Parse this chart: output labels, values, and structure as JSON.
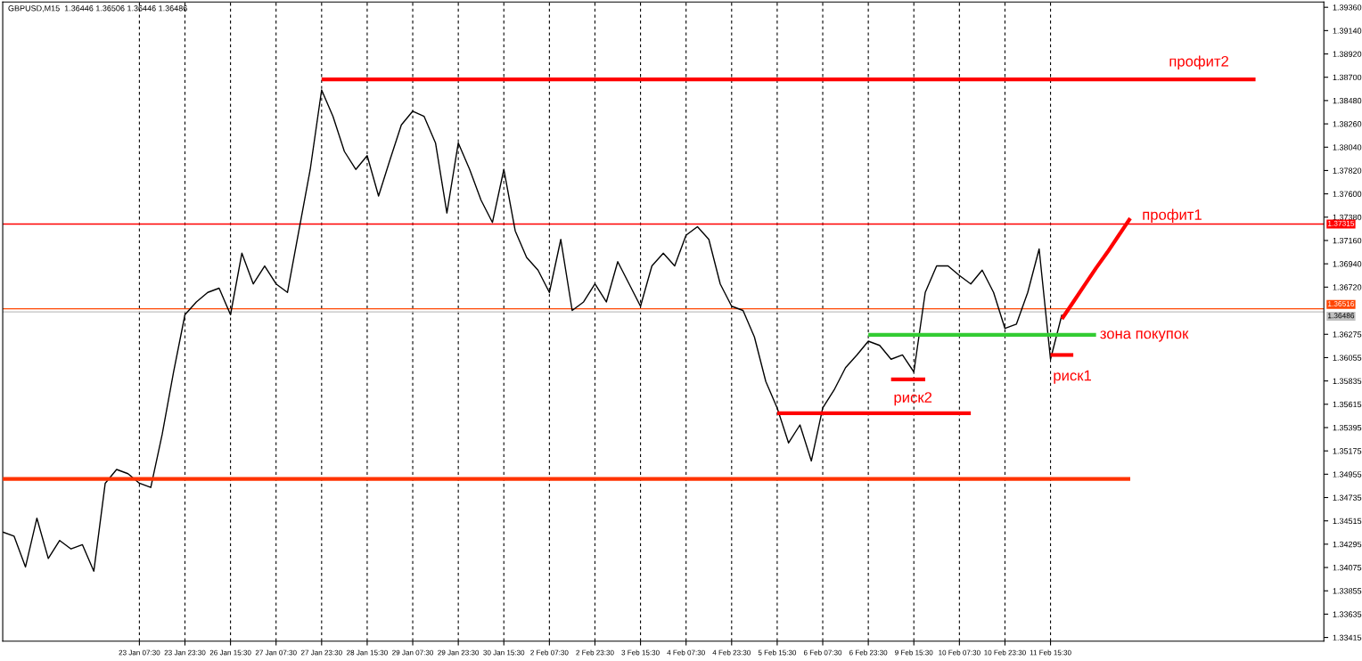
{
  "chart_data": {
    "type": "line",
    "title": "GBPUSD,M15  1.36446 1.36506 1.36446 1.36486",
    "categories": [
      null,
      null,
      null,
      null,
      null,
      null,
      null,
      null,
      null,
      null,
      null,
      null,
      "23 Jan 07:30",
      null,
      null,
      null,
      "23 Jan 23:30",
      null,
      null,
      null,
      "26 Jan 15:30",
      null,
      null,
      null,
      "27 Jan 07:30",
      null,
      null,
      null,
      "27 Jan 23:30",
      null,
      null,
      null,
      "28 Jan 15:30",
      null,
      null,
      null,
      "29 Jan 07:30",
      null,
      null,
      null,
      "29 Jan 23:30",
      null,
      null,
      null,
      "30 Jan 15:30",
      null,
      null,
      null,
      "2 Feb 07:30",
      null,
      null,
      null,
      "2 Feb 23:30",
      null,
      null,
      null,
      "3 Feb 15:30",
      null,
      null,
      null,
      "4 Feb 07:30",
      null,
      null,
      null,
      "4 Feb 23:30",
      null,
      null,
      null,
      "5 Feb 15:30",
      null,
      null,
      null,
      "6 Feb 07:30",
      null,
      null,
      null,
      "6 Feb 23:30",
      null,
      null,
      null,
      "9 Feb 15:30",
      null,
      null,
      null,
      "10 Feb 07:30",
      null,
      null,
      null,
      "10 Feb 23:30",
      null,
      null,
      null,
      "11 Feb 15:30",
      null,
      null,
      null,
      null,
      null,
      null,
      null,
      null,
      null,
      null,
      null,
      null,
      null,
      null,
      null,
      null,
      null,
      null,
      null,
      null,
      null,
      null,
      null,
      null
    ],
    "ylim": [
      1.3338,
      1.3941
    ],
    "yticks": [
      {
        "value": 1.3936,
        "label": "1.39360"
      },
      {
        "value": 1.3914,
        "label": "1.39140"
      },
      {
        "value": 1.3892,
        "label": "1.38920"
      },
      {
        "value": 1.387,
        "label": "1.38700"
      },
      {
        "value": 1.3848,
        "label": "1.38480"
      },
      {
        "value": 1.3826,
        "label": "1.38260"
      },
      {
        "value": 1.3804,
        "label": "1.38040"
      },
      {
        "value": 1.3782,
        "label": "1.37820"
      },
      {
        "value": 1.376,
        "label": "1.37600"
      },
      {
        "value": 1.3738,
        "label": "1.37380"
      },
      {
        "value": 1.3716,
        "label": "1.37160"
      },
      {
        "value": 1.3694,
        "label": "1.36940"
      },
      {
        "value": 1.3672,
        "label": "1.36720"
      },
      {
        "value": 1.36275,
        "label": "1.36275"
      },
      {
        "value": 1.36055,
        "label": "1.36055"
      },
      {
        "value": 1.35835,
        "label": "1.35835"
      },
      {
        "value": 1.35615,
        "label": "1.35615"
      },
      {
        "value": 1.35395,
        "label": "1.35395"
      },
      {
        "value": 1.35175,
        "label": "1.35175"
      },
      {
        "value": 1.34955,
        "label": "1.34955"
      },
      {
        "value": 1.34735,
        "label": "1.34735"
      },
      {
        "value": 1.34515,
        "label": "1.34515"
      },
      {
        "value": 1.34295,
        "label": "1.34295"
      },
      {
        "value": 1.34075,
        "label": "1.34075"
      },
      {
        "value": 1.33855,
        "label": "1.33855"
      },
      {
        "value": 1.33635,
        "label": "1.33635"
      },
      {
        "value": 1.33415,
        "label": "1.33415"
      }
    ],
    "grid": "x",
    "legend": false,
    "series": [
      {
        "color": "#000000",
        "values": [
          1.3441,
          1.3437,
          1.3408,
          1.3454,
          1.3416,
          1.3433,
          1.3425,
          1.3429,
          1.3404,
          1.3487,
          1.35,
          1.3496,
          1.3487,
          1.3483,
          1.3533,
          1.3592,
          1.3646,
          1.3658,
          1.3667,
          1.3671,
          1.3646,
          1.3704,
          1.3675,
          1.3692,
          1.3675,
          1.3667,
          1.3725,
          1.3783,
          1.3858,
          1.3833,
          1.38,
          1.3783,
          1.3796,
          1.3758,
          1.3792,
          1.3825,
          1.3838,
          1.3833,
          1.3808,
          1.3742,
          1.3808,
          1.3783,
          1.3754,
          1.3733,
          1.3783,
          1.3725,
          1.37,
          1.3688,
          1.3667,
          1.3717,
          1.365,
          1.3658,
          1.3675,
          1.3658,
          1.3696,
          1.3675,
          1.3654,
          1.3692,
          1.3704,
          1.3692,
          1.3721,
          1.3729,
          1.3717,
          1.3675,
          1.3654,
          1.365,
          1.3625,
          1.3583,
          1.3558,
          1.3525,
          1.3542,
          1.3508,
          1.3558,
          1.3575,
          1.3596,
          1.3608,
          1.3621,
          1.3617,
          1.3604,
          1.3608,
          1.3592,
          1.3667,
          1.3692,
          1.3692,
          1.3683,
          1.3675,
          1.3688,
          1.3667,
          1.3633,
          1.3637,
          1.3667,
          1.3708,
          1.3604,
          1.3646,
          null,
          null,
          null,
          null,
          null,
          null,
          null,
          null,
          null,
          null,
          null,
          null,
          null,
          null,
          null,
          null,
          null,
          null,
          null,
          null,
          null,
          null,
          null
        ]
      },
      {
        "color": "#ff0000",
        "values": [
          null,
          null,
          null,
          null,
          null,
          null,
          null,
          null,
          null,
          null,
          null,
          null,
          null,
          null,
          null,
          null,
          null,
          null,
          null,
          null,
          null,
          null,
          null,
          null,
          null,
          null,
          null,
          null,
          1.3868,
          1.3868,
          1.3868,
          1.3868,
          1.3868,
          1.3868,
          1.3868,
          1.3868,
          1.3868,
          1.3868,
          1.3868,
          1.3868,
          1.3868,
          1.3868,
          1.3868,
          1.3868,
          1.3868,
          1.3868,
          1.3868,
          1.3868,
          1.3868,
          1.3868,
          1.3868,
          1.3868,
          1.3868,
          1.3868,
          1.3868,
          1.3868,
          1.3868,
          1.3868,
          1.3868,
          1.3868,
          1.3868,
          1.3868,
          1.3868,
          1.3868,
          1.3868,
          1.3868,
          1.3868,
          1.3868,
          1.3868,
          1.3868,
          1.3868,
          1.3868,
          1.3868,
          1.3868,
          1.3868,
          1.3868,
          1.3868,
          1.3868,
          1.3868,
          1.3868,
          1.3868,
          1.3868,
          1.3868,
          1.3868,
          1.3868,
          1.3868,
          1.3868,
          1.3868,
          1.3868,
          1.3868,
          1.3868,
          1.3868,
          1.3868,
          1.3868,
          1.3868,
          1.3868,
          1.3868,
          1.3868,
          1.3868,
          1.3868,
          1.3868,
          1.3868,
          1.3868,
          1.3868,
          1.3868,
          1.3868,
          1.3868,
          1.3868,
          1.3868,
          1.3868,
          1.3868,
          null,
          null,
          null,
          null,
          null,
          null
        ]
      },
      {
        "color": "#ff3300",
        "values": [
          1.3491,
          1.3491,
          1.3491,
          1.3491,
          1.3491,
          1.3491,
          1.3491,
          1.3491,
          1.3491,
          1.3491,
          1.3491,
          1.3491,
          1.3491,
          1.3491,
          1.3491,
          1.3491,
          1.3491,
          1.3491,
          1.3491,
          1.3491,
          1.3491,
          1.3491,
          1.3491,
          1.3491,
          1.3491,
          1.3491,
          1.3491,
          1.3491,
          1.3491,
          1.3491,
          1.3491,
          1.3491,
          1.3491,
          1.3491,
          1.3491,
          1.3491,
          1.3491,
          1.3491,
          1.3491,
          1.3491,
          1.3491,
          1.3491,
          1.3491,
          1.3491,
          1.3491,
          1.3491,
          1.3491,
          1.3491,
          1.3491,
          1.3491,
          1.3491,
          1.3491,
          1.3491,
          1.3491,
          1.3491,
          1.3491,
          1.3491,
          1.3491,
          1.3491,
          1.3491,
          1.3491,
          1.3491,
          1.3491,
          1.3491,
          1.3491,
          1.3491,
          1.3491,
          1.3491,
          1.3491,
          1.3491,
          1.3491,
          1.3491,
          1.3491,
          1.3491,
          1.3491,
          1.3491,
          1.3491,
          1.3491,
          1.3491,
          1.3491,
          1.3491,
          1.3491,
          1.3491,
          1.3491,
          1.3491,
          1.3491,
          1.3491,
          1.3491,
          1.3491,
          1.3491,
          1.3491,
          1.3491,
          1.3491,
          1.3491,
          1.3491,
          1.3491,
          1.3491,
          1.3491,
          1.3491,
          1.3491,
          null,
          null,
          null,
          null,
          null,
          null,
          null,
          null,
          null,
          null,
          null,
          null,
          null,
          null,
          null,
          null,
          null
        ]
      },
      {
        "color": "#33cc33",
        "values": [
          null,
          null,
          null,
          null,
          null,
          null,
          null,
          null,
          null,
          null,
          null,
          null,
          null,
          null,
          null,
          null,
          null,
          null,
          null,
          null,
          null,
          null,
          null,
          null,
          null,
          null,
          null,
          null,
          null,
          null,
          null,
          null,
          null,
          null,
          null,
          null,
          null,
          null,
          null,
          null,
          null,
          null,
          null,
          null,
          null,
          null,
          null,
          null,
          null,
          null,
          null,
          null,
          null,
          null,
          null,
          null,
          null,
          null,
          null,
          null,
          null,
          null,
          null,
          null,
          null,
          null,
          null,
          null,
          null,
          null,
          null,
          null,
          null,
          null,
          null,
          null,
          1.3627,
          1.3627,
          1.3627,
          1.3627,
          1.3627,
          1.3627,
          1.3627,
          1.3627,
          1.3627,
          1.3627,
          1.3627,
          1.3627,
          1.3627,
          1.3627,
          1.3627,
          1.3627,
          1.3627,
          1.3627,
          1.3627,
          1.3627,
          1.3627,
          null,
          null,
          null,
          null,
          null,
          null,
          null,
          null,
          null,
          null,
          null,
          null,
          null,
          null,
          null,
          null,
          null,
          null,
          null,
          null
        ]
      },
      {
        "color": "#ff0000",
        "values": [
          null,
          null,
          null,
          null,
          null,
          null,
          null,
          null,
          null,
          null,
          null,
          null,
          null,
          null,
          null,
          null,
          null,
          null,
          null,
          null,
          null,
          null,
          null,
          null,
          null,
          null,
          null,
          null,
          null,
          null,
          null,
          null,
          null,
          null,
          null,
          null,
          null,
          null,
          null,
          null,
          null,
          null,
          null,
          null,
          null,
          null,
          null,
          null,
          null,
          null,
          null,
          null,
          null,
          null,
          null,
          null,
          null,
          null,
          null,
          null,
          null,
          null,
          null,
          null,
          null,
          null,
          null,
          null,
          1.3553,
          1.3553,
          1.3553,
          1.3553,
          1.3553,
          1.3553,
          1.3553,
          1.3553,
          1.3553,
          1.3553,
          1.3553,
          1.3553,
          1.3553,
          1.3553,
          1.3553,
          1.3553,
          1.3553,
          1.3553,
          null,
          null,
          null,
          null,
          null,
          null,
          null,
          null,
          null,
          null,
          null,
          null,
          null,
          null,
          null,
          null,
          null,
          null,
          null,
          null,
          null,
          null,
          null,
          null,
          null,
          null,
          null,
          null,
          null,
          null,
          null
        ]
      },
      {
        "color": "#ff0000",
        "values": [
          null,
          null,
          null,
          null,
          null,
          null,
          null,
          null,
          null,
          null,
          null,
          null,
          null,
          null,
          null,
          null,
          null,
          null,
          null,
          null,
          null,
          null,
          null,
          null,
          null,
          null,
          null,
          null,
          null,
          null,
          null,
          null,
          null,
          null,
          null,
          null,
          null,
          null,
          null,
          null,
          null,
          null,
          null,
          null,
          null,
          null,
          null,
          null,
          null,
          null,
          null,
          null,
          null,
          null,
          null,
          null,
          null,
          null,
          null,
          null,
          null,
          null,
          null,
          null,
          null,
          null,
          null,
          null,
          null,
          null,
          null,
          null,
          null,
          null,
          null,
          null,
          null,
          null,
          null,
          null,
          null,
          null,
          null,
          null,
          null,
          null,
          null,
          null,
          null,
          null,
          null,
          null,
          null,
          1.3642,
          1.3658,
          1.3674,
          1.369,
          1.3705,
          1.3721,
          1.3737,
          null,
          null,
          null,
          null,
          null,
          null,
          null,
          null,
          null,
          null,
          null,
          null,
          null,
          null,
          null,
          null,
          null
        ]
      },
      {
        "color": "#ff0000",
        "values": [
          null,
          null,
          null,
          null,
          null,
          null,
          null,
          null,
          null,
          null,
          null,
          null,
          null,
          null,
          null,
          null,
          null,
          null,
          null,
          null,
          null,
          null,
          null,
          null,
          null,
          null,
          null,
          null,
          null,
          null,
          null,
          null,
          null,
          null,
          null,
          null,
          null,
          null,
          null,
          null,
          null,
          null,
          null,
          null,
          null,
          null,
          null,
          null,
          null,
          null,
          null,
          null,
          null,
          null,
          null,
          null,
          null,
          null,
          null,
          null,
          null,
          null,
          null,
          null,
          null,
          null,
          null,
          null,
          null,
          null,
          null,
          null,
          null,
          null,
          null,
          null,
          null,
          null,
          1.3585,
          1.3585,
          1.3585,
          1.3585,
          null,
          null,
          null,
          null,
          null,
          null,
          null,
          null,
          null,
          null,
          null,
          null,
          null,
          null,
          null,
          null,
          null,
          null,
          null,
          null,
          null,
          null,
          null,
          null,
          null,
          null,
          null,
          null,
          null,
          null,
          null,
          null,
          null,
          null,
          null
        ]
      },
      {
        "color": "#ff0000",
        "values": [
          null,
          null,
          null,
          null,
          null,
          null,
          null,
          null,
          null,
          null,
          null,
          null,
          null,
          null,
          null,
          null,
          null,
          null,
          null,
          null,
          null,
          null,
          null,
          null,
          null,
          null,
          null,
          null,
          null,
          null,
          null,
          null,
          null,
          null,
          null,
          null,
          null,
          null,
          null,
          null,
          null,
          null,
          null,
          null,
          null,
          null,
          null,
          null,
          null,
          null,
          null,
          null,
          null,
          null,
          null,
          null,
          null,
          null,
          null,
          null,
          null,
          null,
          null,
          null,
          null,
          null,
          null,
          null,
          null,
          null,
          null,
          null,
          null,
          null,
          null,
          null,
          null,
          null,
          null,
          null,
          null,
          null,
          null,
          null,
          null,
          null,
          null,
          null,
          null,
          null,
          null,
          null,
          1.3608,
          1.3608,
          1.3608,
          null,
          null,
          null,
          null,
          null,
          null,
          null,
          null,
          null,
          null,
          null,
          null,
          null,
          null,
          null,
          null,
          null,
          null,
          null,
          null,
          null,
          null
        ]
      }
    ],
    "ref_lines": [
      {
        "axis": "y",
        "value": 1.37315,
        "label": "1.37315",
        "color": "#ff0000"
      },
      {
        "axis": "y",
        "value": 1.36516,
        "label": "1.36516",
        "color": "#ff4500"
      },
      {
        "axis": "y",
        "value": 1.36486,
        "label": "1.36486",
        "color": "#c0c0c0"
      }
    ],
    "annotations": [
      "профит2",
      "профит1",
      "зона покупок",
      "риск2",
      "риск1"
    ]
  }
}
